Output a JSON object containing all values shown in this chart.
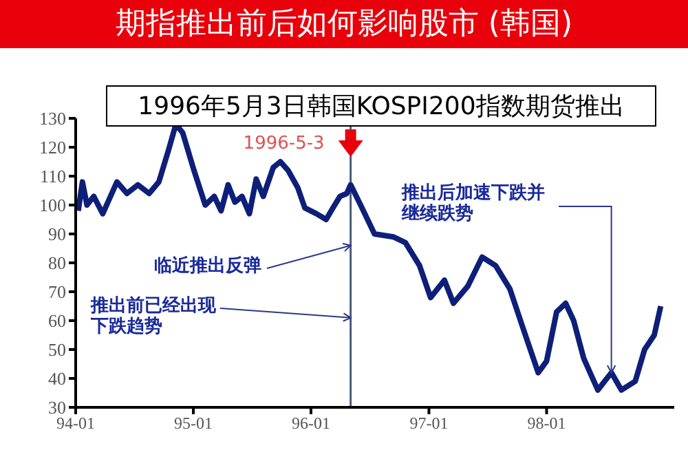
{
  "chart_data": {
    "type": "line",
    "title": "期指推出前后如何影响股市 (韩国)",
    "subtitle": "1996年5月3日韩国KOSPI200指数期货推出",
    "x": [
      "1994-01-09",
      "1994-01-22",
      "1994-02-05",
      "1994-02-26",
      "1994-03-26",
      "1994-05-09",
      "1994-06-09",
      "1994-07-13",
      "1994-08-17",
      "1994-09-16",
      "1994-10-16",
      "1994-11-08",
      "1994-11-29",
      "1995-01-03",
      "1995-02-07",
      "1995-03-07",
      "1995-03-28",
      "1995-04-19",
      "1995-05-10",
      "1995-06-01",
      "1995-06-24",
      "1995-07-15",
      "1995-08-06",
      "1995-09-06",
      "1995-09-28",
      "1995-10-22",
      "1995-11-21",
      "1995-12-13",
      "1996-01-18",
      "1996-02-17",
      "1996-03-09",
      "1996-03-31",
      "1996-04-21",
      "1996-05-03",
      "1996-06-03",
      "1996-07-16",
      "1996-09-12",
      "1996-10-20",
      "1996-12-03",
      "1997-01-06",
      "1997-02-18",
      "1997-03-18",
      "1997-05-02",
      "1997-06-15",
      "1997-07-27",
      "1997-09-09",
      "1997-10-21",
      "1997-12-06",
      "1998-01-01",
      "1998-02-01",
      "1998-03-01",
      "1998-03-26",
      "1998-04-26",
      "1998-06-09",
      "1998-07-21",
      "1998-08-21",
      "1998-10-03",
      "1998-11-01",
      "1998-12-01",
      "1998-12-21"
    ],
    "series": [
      {
        "color": "#0d1f78",
        "values": [
          98,
          108,
          100,
          103,
          97,
          108,
          104,
          107,
          104,
          108,
          119,
          128,
          125,
          112,
          100,
          103,
          98,
          107,
          101,
          103,
          97,
          109,
          103,
          113,
          115,
          112,
          106,
          99,
          97,
          95,
          99,
          103,
          104,
          107,
          100,
          90,
          89,
          87,
          79,
          68,
          74,
          66,
          72,
          82,
          79,
          71,
          57,
          42,
          46,
          63,
          66,
          60,
          47,
          36,
          42,
          36,
          39,
          50,
          55,
          65
        ]
      }
    ],
    "xlim": [
      "1994-01-01",
      "1999-02-01"
    ],
    "xticks": [
      {
        "value": "1994-01-01",
        "label": "94-01"
      },
      {
        "value": "1995-01-01",
        "label": "95-01"
      },
      {
        "value": "1996-01-01",
        "label": "96-01"
      },
      {
        "value": "1997-01-01",
        "label": "97-01"
      },
      {
        "value": "1998-01-01",
        "label": "98-01"
      }
    ],
    "ylim": [
      30,
      130
    ],
    "yticks": [
      30,
      40,
      50,
      60,
      70,
      80,
      90,
      100,
      110,
      120,
      130
    ],
    "marker": "none",
    "line_style": "solid",
    "ref_lines": [
      {
        "axis": "x",
        "value": "1996-05-03",
        "label": "1996-5-3",
        "color": "#4a5a7a"
      }
    ],
    "annotations": [
      {
        "text": "临近推出反弹",
        "x": "1996-05-03",
        "y": 86
      },
      {
        "text": "推出前已经出现下跌趋势",
        "x": "1996-05-03",
        "y": 61
      },
      {
        "text": "推出后加速下跌并继续跌势",
        "x": "1998-07-21",
        "y": 42
      }
    ]
  }
}
